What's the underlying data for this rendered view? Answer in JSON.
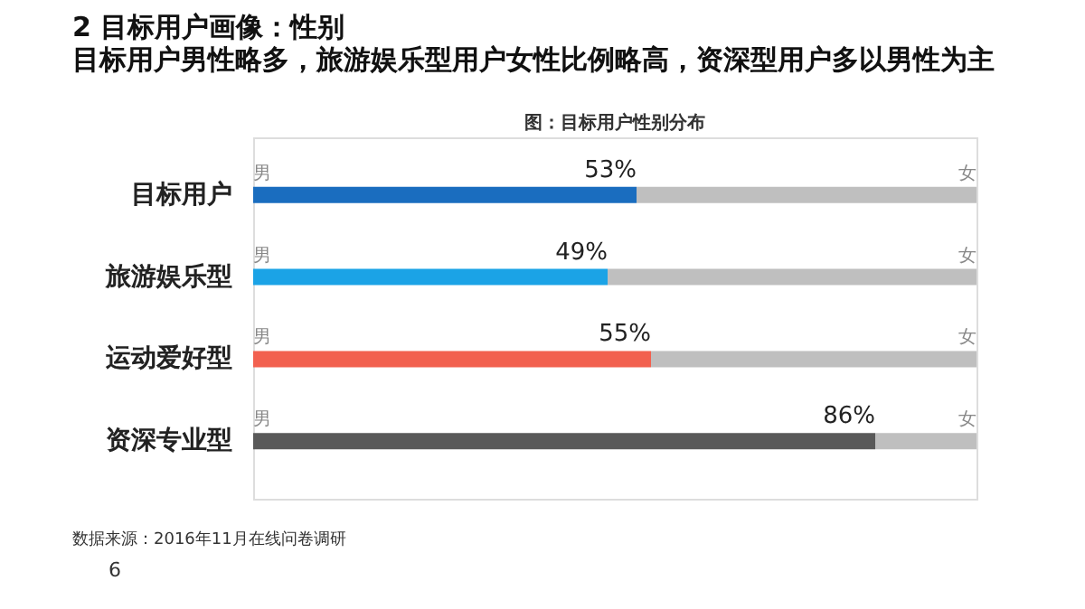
{
  "chart_data": {
    "type": "bar",
    "orientation": "horizontal",
    "stacked": true,
    "title": "2 目标用户画像：性别",
    "subtitle": "目标用户男性略多，旅游娱乐型用户女性比例略高，资深型用户多以男性为主",
    "categories": [
      "目标用户",
      "旅游娱乐型",
      "运动爱好型",
      "资深专业型"
    ],
    "series": [
      {
        "name": "男",
        "colors": [
          "#1a6dbf",
          "#1ba3e6",
          "#f2604f",
          "#595959"
        ],
        "values": [
          53,
          49,
          55,
          86
        ],
        "value_labels": [
          "53%",
          "49%",
          "55%",
          "86%"
        ]
      },
      {
        "name": "女",
        "color": "#bfbfbf",
        "values": [
          47,
          51,
          45,
          14
        ]
      }
    ],
    "xlim": [
      0,
      100
    ],
    "tick_labels": "y",
    "annotations": [
      "图：目标用户性别分布",
      "数据来源：2016年11月在线问卷调研",
      "6"
    ]
  }
}
